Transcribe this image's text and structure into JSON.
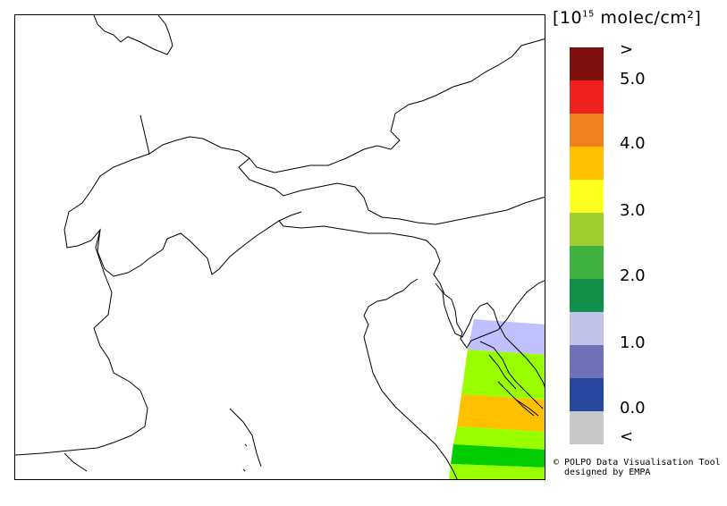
{
  "legend": {
    "unit": "[10",
    "unit_exp": "15",
    "unit_rest": " molec/cm²]",
    "colors": [
      "#7f1010",
      "#ee2020",
      "#f08020",
      "#ffc000",
      "#ffff20",
      "#a0cc30",
      "#40b040",
      "#10904a",
      "#c0c0e8",
      "#7070b8",
      "#2848a0",
      "#c8c8c8"
    ],
    "color_names": [
      "dark-red",
      "red",
      "orange",
      "amber",
      "yellow",
      "yellow-green",
      "green",
      "dark-green",
      "lavender",
      "periwinkle",
      "blue",
      "gray"
    ],
    "ticks": [
      ">",
      "5.0",
      "4.0",
      "3.0",
      "2.0",
      "1.0",
      "0.0",
      "<"
    ]
  },
  "credit": {
    "line1": "© POLPO Data Visualisation Tool",
    "line2": "  designed by EMPA"
  },
  "map": {
    "data_colors": {
      "light_purple": "#c0c0ff",
      "light_green": "#99ff00",
      "orange": "#ffc000",
      "green": "#00cc00"
    }
  }
}
